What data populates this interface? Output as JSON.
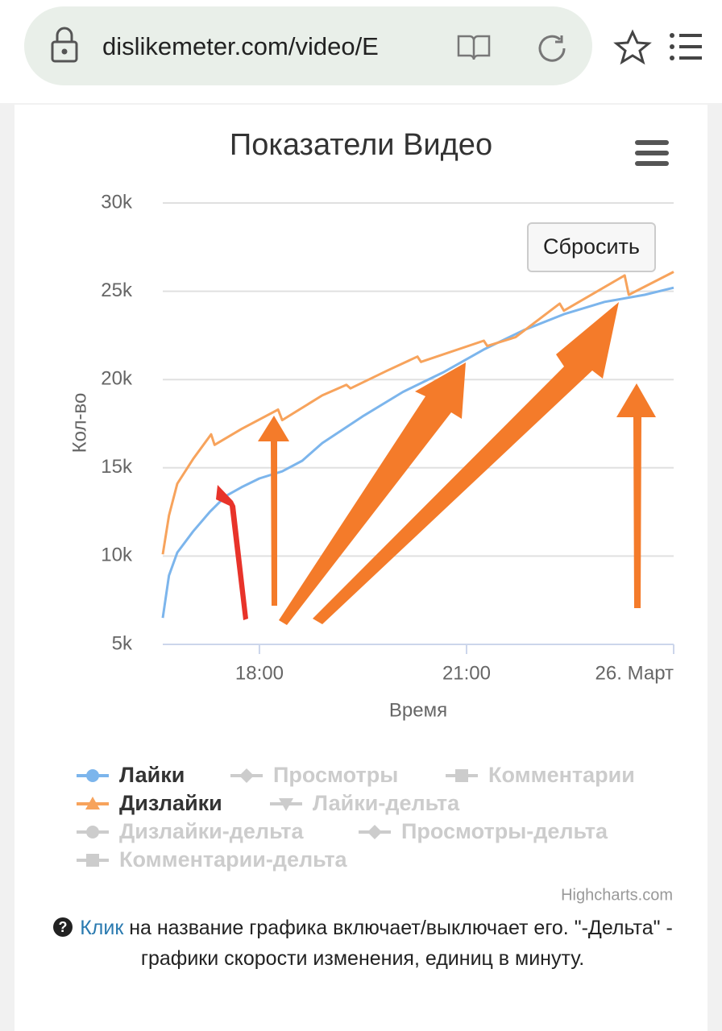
{
  "browser": {
    "url": "dislikemeter.com/video/E"
  },
  "chart_data": {
    "type": "line",
    "title": "Показатели Видео",
    "reset_button": "Сбросить",
    "credits": "Highcharts.com",
    "x_label": "Время",
    "y_label": "Кол-во",
    "xlim": [
      16.6,
      24
    ],
    "xticks": [
      {
        "value": 18,
        "label": "18:00"
      },
      {
        "value": 21,
        "label": "21:00"
      },
      {
        "value": 24,
        "label": "26. Март"
      }
    ],
    "ylim": [
      5000,
      30000
    ],
    "yticks": [
      {
        "value": 5000,
        "label": "5k"
      },
      {
        "value": 10000,
        "label": "10k"
      },
      {
        "value": 15000,
        "label": "15k"
      },
      {
        "value": 20000,
        "label": "20k"
      },
      {
        "value": 25000,
        "label": "25k"
      },
      {
        "value": 30000,
        "label": "30k"
      }
    ],
    "grid": true,
    "series": [
      {
        "name": "Лайки",
        "color": "#7cb5ec",
        "marker": "circle",
        "visible": true,
        "x": [
          16.6,
          16.69,
          16.81,
          17.04,
          17.28,
          17.51,
          17.74,
          18.0,
          18.33,
          18.62,
          18.91,
          19.49,
          20.08,
          20.66,
          21.25,
          21.83,
          22.41,
          23.0,
          23.58,
          24.0
        ],
        "values": [
          6500,
          8900,
          10200,
          11400,
          12500,
          13400,
          13900,
          14400,
          14800,
          15400,
          16400,
          17900,
          19300,
          20400,
          21700,
          22800,
          23700,
          24400,
          24800,
          25200
        ]
      },
      {
        "name": "Просмотры",
        "marker": "diamond",
        "visible": false
      },
      {
        "name": "Комментарии",
        "marker": "square",
        "visible": false
      },
      {
        "name": "Дизлайки",
        "color": "#f7a35c",
        "marker": "triangle",
        "visible": true,
        "x": [
          16.6,
          16.69,
          16.81,
          17.04,
          17.3,
          17.35,
          17.74,
          18.27,
          18.33,
          18.91,
          19.26,
          19.32,
          19.85,
          20.29,
          20.34,
          21.25,
          21.3,
          21.71,
          22.35,
          22.41,
          23.29,
          23.35,
          24.0
        ],
        "values": [
          10100,
          12300,
          14100,
          15500,
          16900,
          16300,
          17200,
          18300,
          17700,
          19100,
          19700,
          19500,
          20500,
          21300,
          21000,
          22200,
          21900,
          22400,
          24300,
          23900,
          25900,
          24800,
          26100
        ]
      },
      {
        "name": "Лайки-дельта",
        "marker": "triangle-down",
        "visible": false
      },
      {
        "name": "Дизлайки-дельта",
        "marker": "circle",
        "visible": false
      },
      {
        "name": "Просмотры-дельта",
        "marker": "diamond",
        "visible": false
      },
      {
        "name": "Комментарии-дельта",
        "marker": "square",
        "visible": false
      }
    ]
  },
  "note": {
    "link": "Клик",
    "text": " на название графика включает/выключает его. \"-Дельта\" - графики скорости изменения, единиц в минуту."
  }
}
